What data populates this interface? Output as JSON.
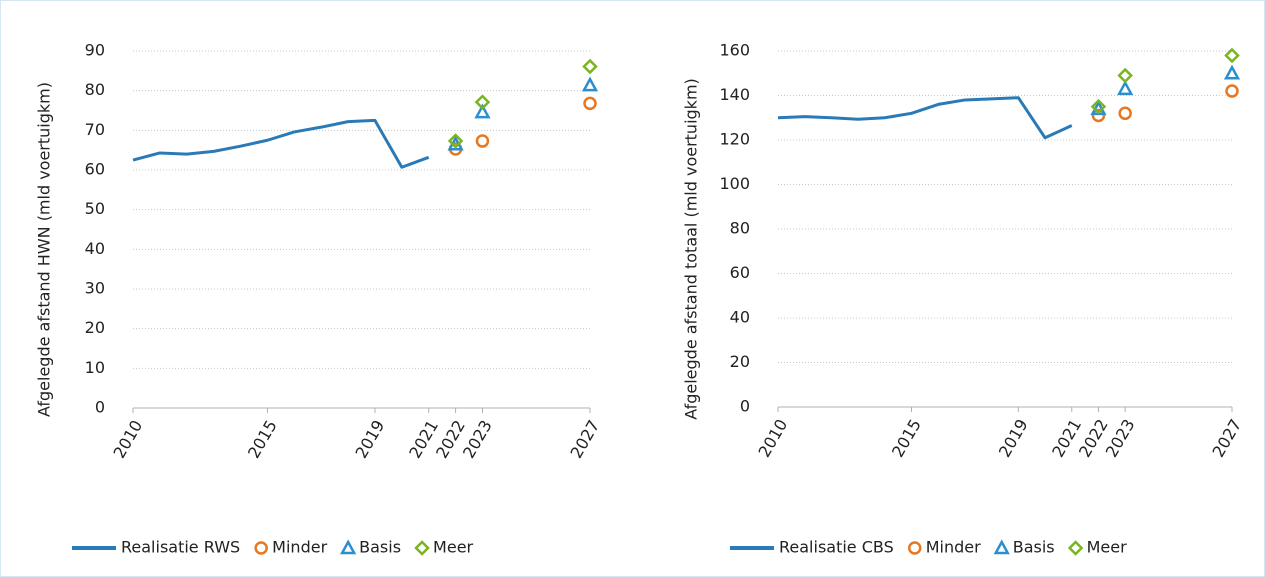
{
  "chart_data": [
    {
      "type": "line",
      "y_label": "Afgelegde afstand HWN (mld voertuigkm)",
      "xlim": [
        2010,
        2027
      ],
      "xticks": [
        2010,
        2015,
        2019,
        2021,
        2022,
        2023,
        2027
      ],
      "ylim": [
        0,
        90
      ],
      "yticks": [
        0,
        10,
        20,
        30,
        40,
        50,
        60,
        70,
        80,
        90
      ],
      "grid": true,
      "series": [
        {
          "name": "Realisatie RWS",
          "color": "#2a7ab8",
          "marker": "line",
          "x": [
            2010,
            2011,
            2012,
            2013,
            2014,
            2015,
            2016,
            2017,
            2018,
            2019,
            2020,
            2021
          ],
          "values": [
            62.5,
            64.3,
            64.0,
            64.7,
            66.0,
            67.5,
            69.6,
            70.8,
            72.2,
            72.5,
            60.7,
            63.2
          ]
        },
        {
          "name": "Minder",
          "color": "#e87722",
          "marker": "circle",
          "x": [
            2022,
            2023,
            2027
          ],
          "values": [
            65.3,
            67.3,
            76.8
          ]
        },
        {
          "name": "Basis",
          "color": "#2a8fd0",
          "marker": "triangle",
          "x": [
            2022,
            2023,
            2027
          ],
          "values": [
            66.5,
            74.6,
            81.4
          ]
        },
        {
          "name": "Meer",
          "color": "#7ab51d",
          "marker": "diamond",
          "x": [
            2022,
            2023,
            2027
          ],
          "values": [
            67.3,
            77.1,
            86.1
          ]
        }
      ]
    },
    {
      "type": "line",
      "y_label": "Afgelegde afstand totaal (mld voertuigkm)",
      "xlim": [
        2010,
        2027
      ],
      "xticks": [
        2010,
        2015,
        2019,
        2021,
        2022,
        2023,
        2027
      ],
      "ylim": [
        0,
        160
      ],
      "yticks": [
        0,
        20,
        40,
        60,
        80,
        100,
        120,
        140,
        160
      ],
      "grid": true,
      "series": [
        {
          "name": "Realisatie CBS",
          "color": "#2a7ab8",
          "marker": "line",
          "x": [
            2010,
            2011,
            2012,
            2013,
            2014,
            2015,
            2016,
            2017,
            2018,
            2019,
            2020,
            2021
          ],
          "values": [
            130,
            130.5,
            130,
            129.3,
            130,
            132,
            136,
            138,
            138.5,
            139,
            121,
            126.5
          ]
        },
        {
          "name": "Minder",
          "color": "#e87722",
          "marker": "circle",
          "x": [
            2022,
            2023,
            2027
          ],
          "values": [
            131,
            132,
            142
          ]
        },
        {
          "name": "Basis",
          "color": "#2a8fd0",
          "marker": "triangle",
          "x": [
            2022,
            2023,
            2027
          ],
          "values": [
            134,
            143,
            150
          ]
        },
        {
          "name": "Meer",
          "color": "#7ab51d",
          "marker": "diamond",
          "x": [
            2022,
            2023,
            2027
          ],
          "values": [
            135,
            149,
            158
          ]
        }
      ]
    }
  ]
}
